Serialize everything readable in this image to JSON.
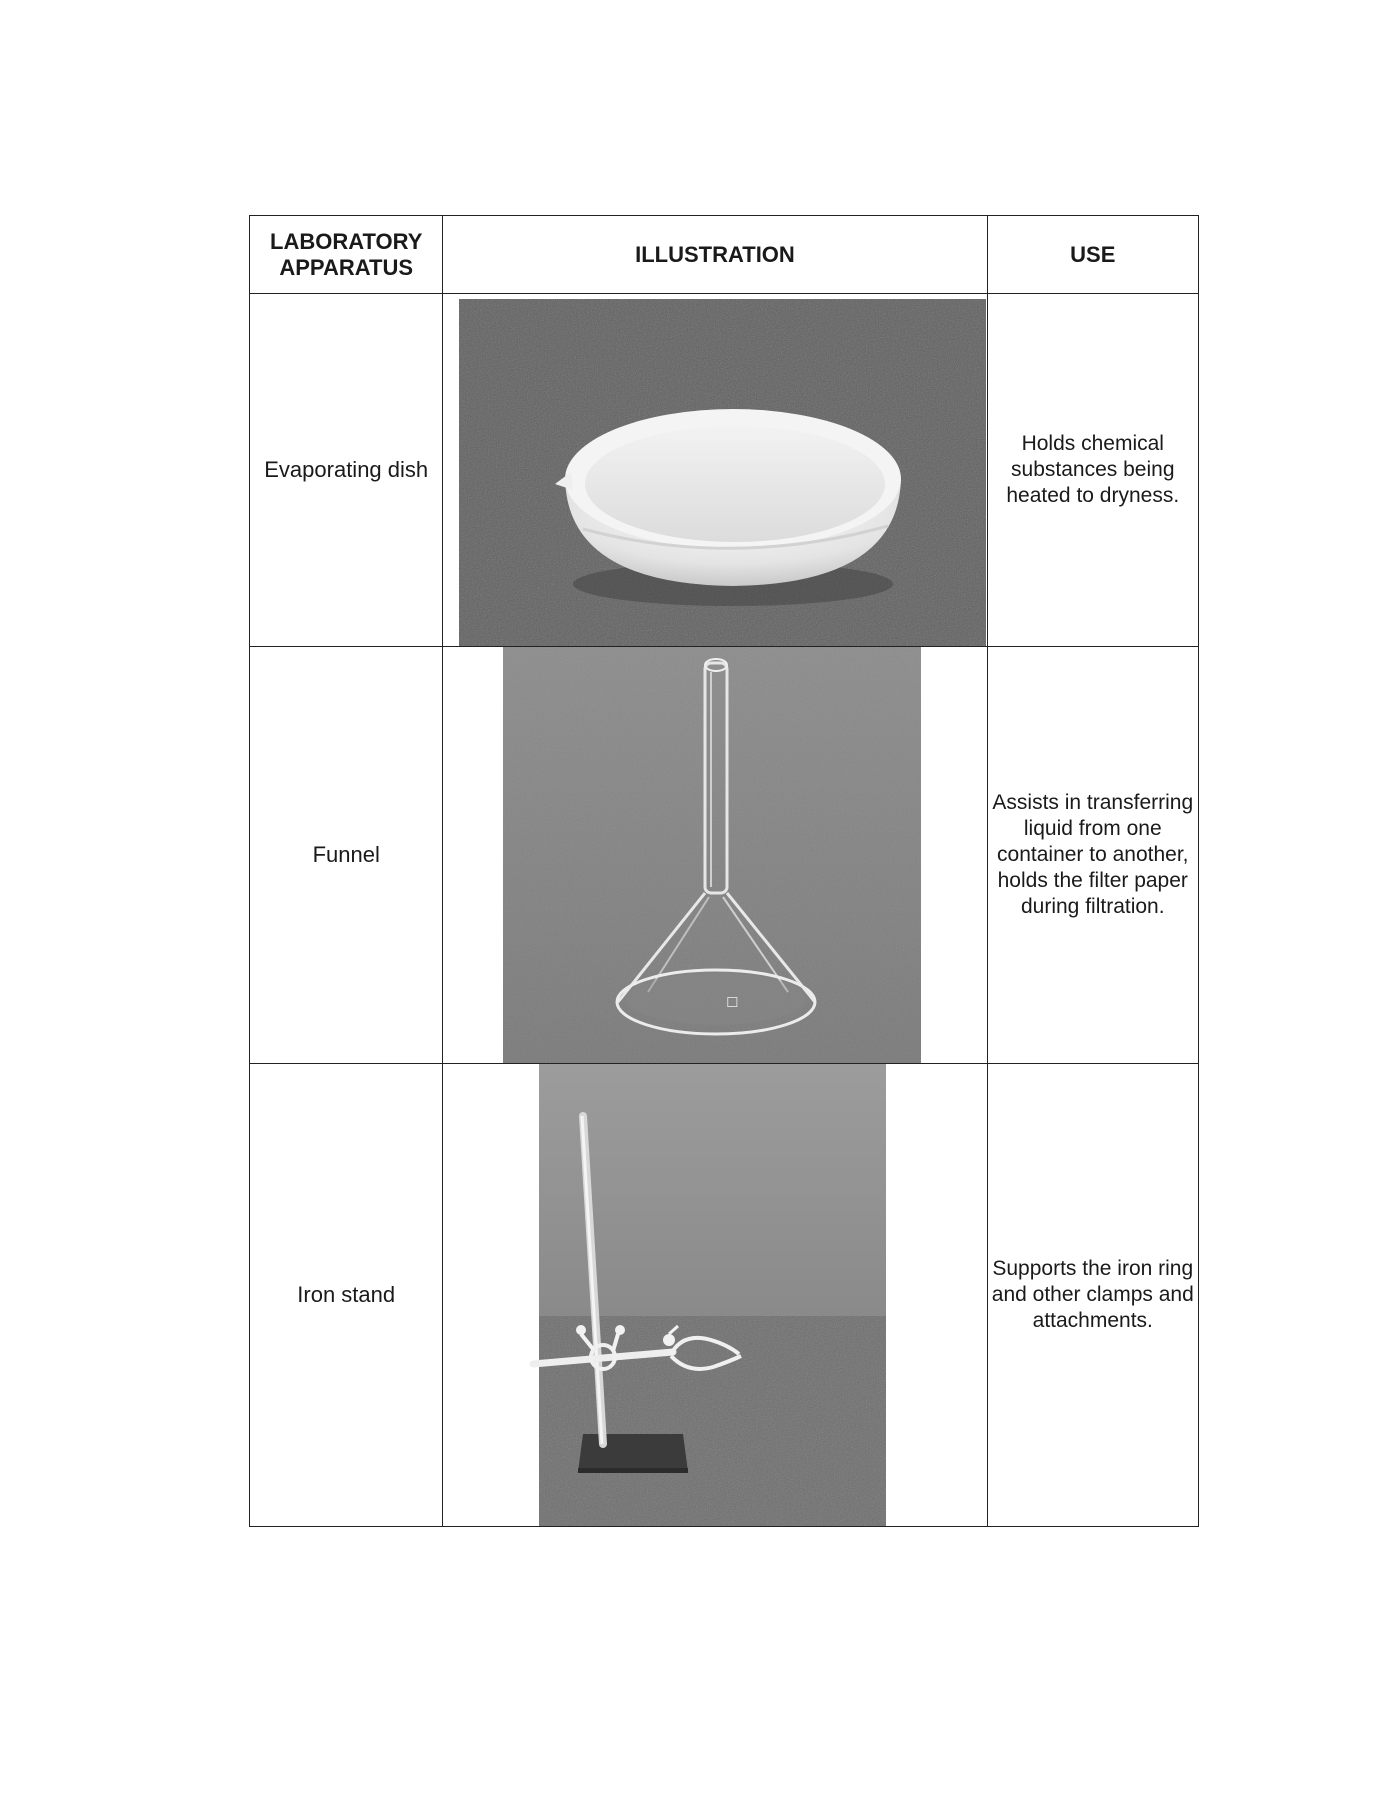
{
  "table": {
    "headers": {
      "apparatus": "LABORATORY APPARATUS",
      "illustration": "ILLUSTRATION",
      "use": "USE"
    },
    "rows": [
      {
        "name": "Evaporating dish",
        "use": "Holds chemical substances being heated to dryness."
      },
      {
        "name": "Funnel",
        "use": "Assists in transferring liquid from one container to another, holds the filter paper during filtration."
      },
      {
        "name": "Iron stand",
        "use": "Supports the iron ring and other clamps and attachments."
      }
    ]
  }
}
